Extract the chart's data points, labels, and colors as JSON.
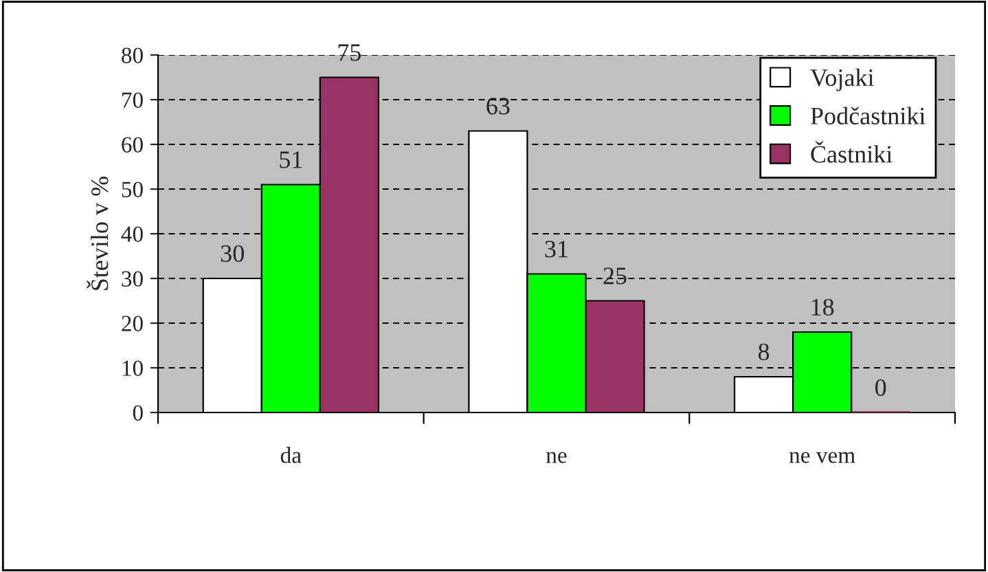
{
  "chart_data": {
    "type": "bar",
    "ylabel": "Število v %",
    "categories": [
      "da",
      "ne",
      "ne vem"
    ],
    "series": [
      {
        "name": "Vojaki",
        "color": "#ffffff",
        "values": [
          30,
          63,
          8
        ]
      },
      {
        "name": "Podčastniki",
        "color": "#00ff00",
        "values": [
          51,
          31,
          18
        ]
      },
      {
        "name": "Častniki",
        "color": "#993366",
        "values": [
          75,
          25,
          0
        ]
      }
    ],
    "ylim": [
      0,
      80
    ],
    "yticks": [
      0,
      10,
      20,
      30,
      40,
      50,
      60,
      70,
      80
    ],
    "grid": "y",
    "legend": "top right",
    "data_labels": true
  }
}
